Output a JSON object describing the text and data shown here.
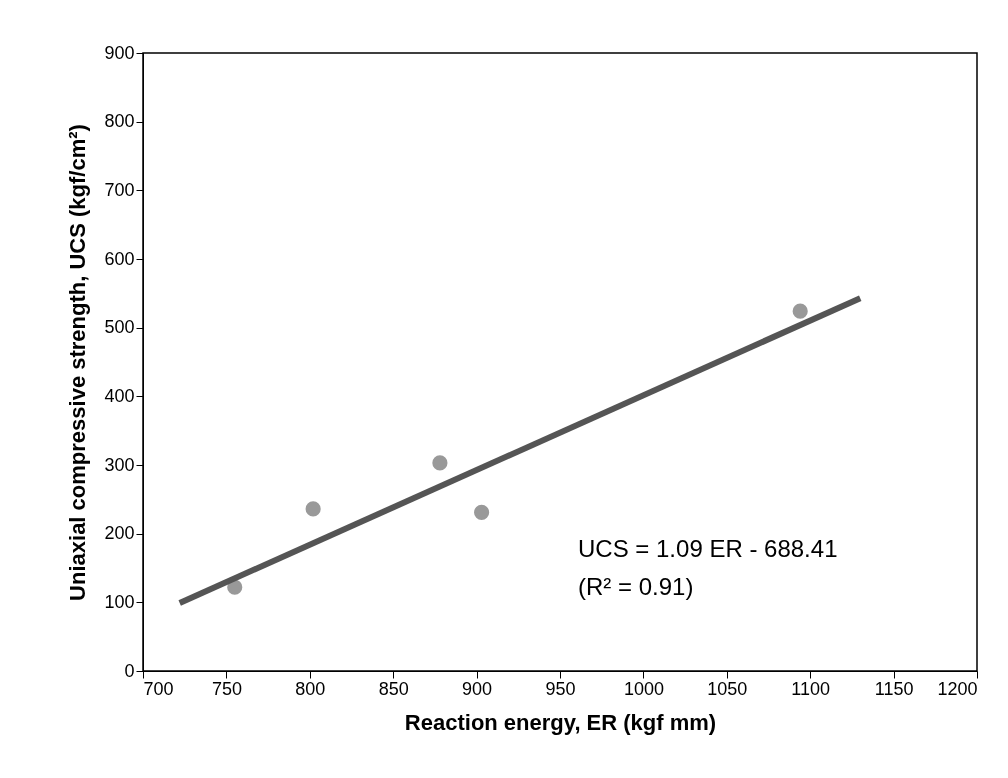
{
  "chart_data": {
    "type": "scatter",
    "xlabel": "Reaction energy, ER (kgf mm)",
    "ylabel": "Uniaxial compressive strength, UCS (kgf/cm²)",
    "series": [
      {
        "marker": "circle",
        "color": "#999999",
        "x": [
          755,
          802,
          878,
          903,
          1094
        ],
        "values": [
          122,
          236,
          303,
          231,
          524
        ]
      },
      {
        "type": "line",
        "marker": "none",
        "color": "#555555",
        "x": [
          722,
          1130
        ],
        "values": [
          99,
          543
        ]
      }
    ],
    "xlim": [
      700,
      1200
    ],
    "xticks": [
      700,
      750,
      800,
      850,
      900,
      950,
      1000,
      1050,
      1100,
      1150,
      1200
    ],
    "ylim": [
      0,
      900
    ],
    "yticks": [
      0,
      100,
      200,
      300,
      400,
      500,
      600,
      700,
      800,
      900
    ],
    "annotations": [
      "UCS = 1.09 ER - 688.41",
      "(R² = 0.91)"
    ],
    "grid": false
  }
}
